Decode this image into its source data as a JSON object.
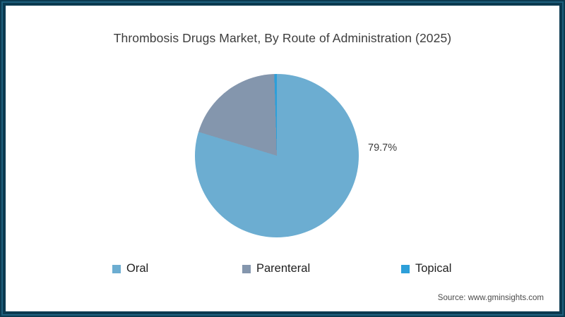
{
  "title": "Thrombosis Drugs Market, By Route of Administration (2025)",
  "data_label": "79.7%",
  "source": "Source: www.gminsights.com",
  "colors": {
    "frame_border": "#0b3a50",
    "frame_inner_line": "#1e607d",
    "background": "#ffffff",
    "oral": "#6cadd1",
    "parenteral": "#8496ad",
    "topical": "#2d9fd9"
  },
  "legend": [
    {
      "label": "Oral",
      "color": "#6cadd1"
    },
    {
      "label": "Parenteral",
      "color": "#8496ad"
    },
    {
      "label": "Topical",
      "color": "#2d9fd9"
    }
  ],
  "chart_data": {
    "type": "pie",
    "title": "Thrombosis Drugs Market, By Route of Administration (2025)",
    "slices": [
      {
        "label": "Oral",
        "value": 79.7,
        "color": "#6cadd1",
        "data_label": "79.7%",
        "estimated": false
      },
      {
        "label": "Parenteral",
        "value": 19.8,
        "color": "#8496ad",
        "data_label": "",
        "estimated": true
      },
      {
        "label": "Topical",
        "value": 0.5,
        "color": "#2d9fd9",
        "data_label": "",
        "estimated": true
      }
    ],
    "start_angle_deg": 0,
    "direction": "clockwise",
    "legend_position": "bottom",
    "labels_shown_on_chart": [
      "79.7%"
    ]
  }
}
